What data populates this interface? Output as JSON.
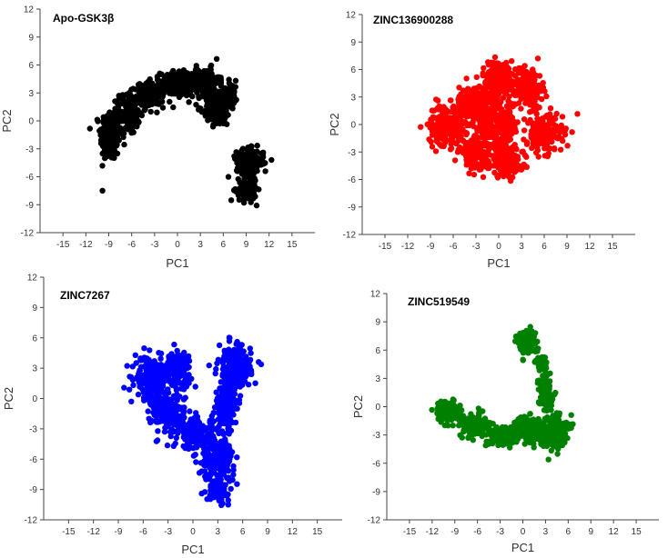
{
  "chart_data": [
    {
      "type": "scatter",
      "title": "Apo-GSK3β",
      "xlabel": "PC1",
      "ylabel": "PC2",
      "xlim": [
        -18,
        18
      ],
      "ylim": [
        -12,
        12
      ],
      "xticks": [
        -15,
        -12,
        -9,
        -6,
        -3,
        0,
        3,
        6,
        9,
        12,
        15
      ],
      "yticks": [
        -12,
        -9,
        -6,
        -3,
        0,
        3,
        6,
        9,
        12
      ],
      "color": "#000000",
      "grid": false,
      "series": [
        {
          "clusters": [
            {
              "center": [
                -8.8,
                -1.5
              ],
              "spread": [
                1.2,
                2.6
              ],
              "n": 220
            },
            {
              "center": [
                -6.5,
                0.8
              ],
              "spread": [
                1.4,
                2.0
              ],
              "n": 160
            },
            {
              "center": [
                -3.5,
                2.8
              ],
              "spread": [
                1.6,
                1.2
              ],
              "n": 160
            },
            {
              "center": [
                0.0,
                4.0
              ],
              "spread": [
                2.0,
                1.2
              ],
              "n": 220
            },
            {
              "center": [
                3.5,
                4.2
              ],
              "spread": [
                1.8,
                1.3
              ],
              "n": 200
            },
            {
              "center": [
                5.2,
                1.5
              ],
              "spread": [
                1.6,
                1.8
              ],
              "n": 180
            },
            {
              "center": [
                7.0,
                3.0
              ],
              "spread": [
                0.8,
                1.2
              ],
              "n": 80
            },
            {
              "center": [
                9.5,
                -4.5
              ],
              "spread": [
                1.6,
                1.3
              ],
              "n": 180
            },
            {
              "center": [
                9.0,
                -7.5
              ],
              "spread": [
                1.2,
                1.0
              ],
              "n": 110
            }
          ]
        }
      ]
    },
    {
      "type": "scatter",
      "title": "ZINC136900288",
      "xlabel": "PC1",
      "ylabel": "PC2",
      "xlim": [
        -18,
        18
      ],
      "ylim": [
        -12,
        12
      ],
      "xticks": [
        -15,
        -12,
        -9,
        -6,
        -3,
        0,
        3,
        6,
        9,
        12,
        15
      ],
      "yticks": [
        -12,
        -9,
        -6,
        -3,
        0,
        3,
        6,
        9,
        12
      ],
      "color": "#ff0000",
      "grid": false,
      "series": [
        {
          "clusters": [
            {
              "center": [
                -7.0,
                0.0
              ],
              "spread": [
                2.0,
                2.0
              ],
              "n": 220
            },
            {
              "center": [
                -3.0,
                2.0
              ],
              "spread": [
                2.0,
                2.0
              ],
              "n": 200
            },
            {
              "center": [
                0.0,
                5.0
              ],
              "spread": [
                2.0,
                1.8
              ],
              "n": 220
            },
            {
              "center": [
                4.0,
                4.0
              ],
              "spread": [
                1.6,
                2.0
              ],
              "n": 160
            },
            {
              "center": [
                6.0,
                -1.0
              ],
              "spread": [
                2.2,
                1.8
              ],
              "n": 220
            },
            {
              "center": [
                1.0,
                -4.0
              ],
              "spread": [
                2.0,
                1.6
              ],
              "n": 200
            },
            {
              "center": [
                -3.0,
                -3.0
              ],
              "spread": [
                2.0,
                1.6
              ],
              "n": 160
            },
            {
              "center": [
                0.0,
                0.0
              ],
              "spread": [
                2.5,
                2.5
              ],
              "n": 200
            }
          ]
        }
      ]
    },
    {
      "type": "scatter",
      "title": "ZINC7267",
      "xlabel": "PC1",
      "ylabel": "PC2",
      "xlim": [
        -18,
        18
      ],
      "ylim": [
        -12,
        12
      ],
      "xticks": [
        -15,
        -12,
        -9,
        -6,
        -3,
        0,
        3,
        6,
        9,
        12,
        15
      ],
      "yticks": [
        -12,
        -9,
        -6,
        -3,
        0,
        3,
        6,
        9,
        12
      ],
      "color": "#0000ff",
      "grid": false,
      "series": [
        {
          "clusters": [
            {
              "center": [
                -5.0,
                2.0
              ],
              "spread": [
                1.8,
                1.8
              ],
              "n": 200
            },
            {
              "center": [
                -2.0,
                3.0
              ],
              "spread": [
                1.6,
                1.6
              ],
              "n": 150
            },
            {
              "center": [
                -3.0,
                -1.5
              ],
              "spread": [
                1.8,
                1.8
              ],
              "n": 200
            },
            {
              "center": [
                0.5,
                -3.5
              ],
              "spread": [
                1.8,
                1.4
              ],
              "n": 160
            },
            {
              "center": [
                5.0,
                3.0
              ],
              "spread": [
                1.8,
                2.0
              ],
              "n": 220
            },
            {
              "center": [
                4.0,
                -1.0
              ],
              "spread": [
                1.2,
                2.0
              ],
              "n": 150
            },
            {
              "center": [
                3.0,
                -6.0
              ],
              "spread": [
                1.8,
                1.8
              ],
              "n": 200
            },
            {
              "center": [
                3.0,
                -9.0
              ],
              "spread": [
                1.2,
                1.0
              ],
              "n": 80
            }
          ]
        }
      ]
    },
    {
      "type": "scatter",
      "title": "ZINC519549",
      "xlabel": "PC1",
      "ylabel": "PC2",
      "xlim": [
        -18,
        18
      ],
      "ylim": [
        -12,
        12
      ],
      "xticks": [
        -15,
        -12,
        -9,
        -6,
        -3,
        0,
        3,
        6,
        9,
        12,
        15
      ],
      "yticks": [
        -12,
        -9,
        -6,
        -3,
        0,
        3,
        6,
        9,
        12
      ],
      "color": "#008000",
      "grid": false,
      "series": [
        {
          "clusters": [
            {
              "center": [
                -10.0,
                -0.5
              ],
              "spread": [
                1.4,
                1.0
              ],
              "n": 140
            },
            {
              "center": [
                -6.5,
                -2.0
              ],
              "spread": [
                1.6,
                1.0
              ],
              "n": 150
            },
            {
              "center": [
                -2.5,
                -3.0
              ],
              "spread": [
                1.8,
                1.0
              ],
              "n": 160
            },
            {
              "center": [
                1.0,
                -2.5
              ],
              "spread": [
                1.6,
                1.4
              ],
              "n": 160
            },
            {
              "center": [
                4.0,
                -2.5
              ],
              "spread": [
                1.6,
                1.6
              ],
              "n": 200
            },
            {
              "center": [
                3.0,
                1.5
              ],
              "spread": [
                0.9,
                1.6
              ],
              "n": 100
            },
            {
              "center": [
                0.5,
                7.0
              ],
              "spread": [
                1.2,
                1.2
              ],
              "n": 120
            },
            {
              "center": [
                2.5,
                4.5
              ],
              "spread": [
                0.6,
                0.9
              ],
              "n": 50
            }
          ]
        }
      ]
    }
  ]
}
